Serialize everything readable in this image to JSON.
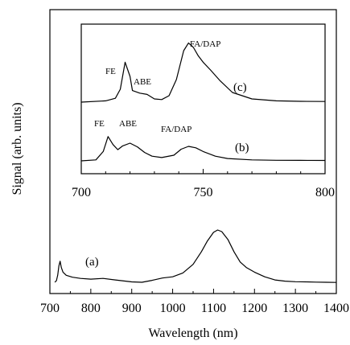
{
  "chart_data": {
    "main": {
      "type": "line",
      "title": "",
      "xlabel": "Wavelength (nm)",
      "ylabel": "Signal (arb. units)",
      "xlim": [
        700,
        1400
      ],
      "ylim": [
        0,
        1.0
      ],
      "xticks": [
        700,
        800,
        900,
        1000,
        1100,
        1200,
        1300,
        1400
      ],
      "series": [
        {
          "name": "(a)",
          "x": [
            712,
            716,
            719,
            722,
            725,
            728,
            732,
            740,
            755,
            775,
            800,
            830,
            860,
            900,
            925,
            950,
            975,
            1000,
            1025,
            1050,
            1070,
            1085,
            1100,
            1110,
            1120,
            1135,
            1150,
            1165,
            1180,
            1200,
            1225,
            1250,
            1275,
            1300,
            1325,
            1350,
            1375,
            1400
          ],
          "y": [
            0.01,
            0.03,
            0.1,
            0.22,
            0.28,
            0.2,
            0.14,
            0.1,
            0.075,
            0.06,
            0.05,
            0.06,
            0.04,
            0.015,
            0.01,
            0.035,
            0.065,
            0.08,
            0.13,
            0.24,
            0.4,
            0.54,
            0.65,
            0.68,
            0.66,
            0.56,
            0.4,
            0.27,
            0.2,
            0.14,
            0.08,
            0.04,
            0.025,
            0.018,
            0.015,
            0.012,
            0.01,
            0.008
          ]
        }
      ],
      "annotations": [
        "(a)"
      ]
    },
    "inset": {
      "type": "line",
      "xlim": [
        700,
        800
      ],
      "xticks": [
        700,
        750,
        800
      ],
      "series": [
        {
          "name": "(b)",
          "x": [
            700,
            706,
            709,
            711,
            713,
            715,
            717,
            720,
            723,
            726,
            729,
            733,
            738,
            741,
            744,
            747,
            750,
            755,
            760,
            770,
            780,
            790,
            800
          ],
          "y": [
            0.0,
            0.02,
            0.2,
            0.52,
            0.35,
            0.24,
            0.32,
            0.38,
            0.3,
            0.18,
            0.1,
            0.07,
            0.12,
            0.25,
            0.31,
            0.28,
            0.2,
            0.1,
            0.05,
            0.02,
            0.012,
            0.01,
            0.008
          ]
        },
        {
          "name": "(c)",
          "x": [
            700,
            710,
            714,
            716,
            718,
            720,
            721,
            724,
            727,
            730,
            733,
            736,
            739,
            742,
            744,
            746,
            748,
            750,
            753,
            757,
            762,
            770,
            780,
            790,
            800
          ],
          "y": [
            0.0,
            0.02,
            0.06,
            0.2,
            0.62,
            0.4,
            0.18,
            0.14,
            0.12,
            0.05,
            0.04,
            0.1,
            0.35,
            0.8,
            0.92,
            0.85,
            0.72,
            0.62,
            0.5,
            0.33,
            0.15,
            0.05,
            0.02,
            0.012,
            0.01
          ]
        }
      ],
      "annotations": {
        "b": [
          "FE",
          "ABE",
          "FA/DAP",
          "(b)"
        ],
        "c": [
          "FE",
          "ABE",
          "FA/DAP",
          "(c)"
        ]
      }
    }
  }
}
